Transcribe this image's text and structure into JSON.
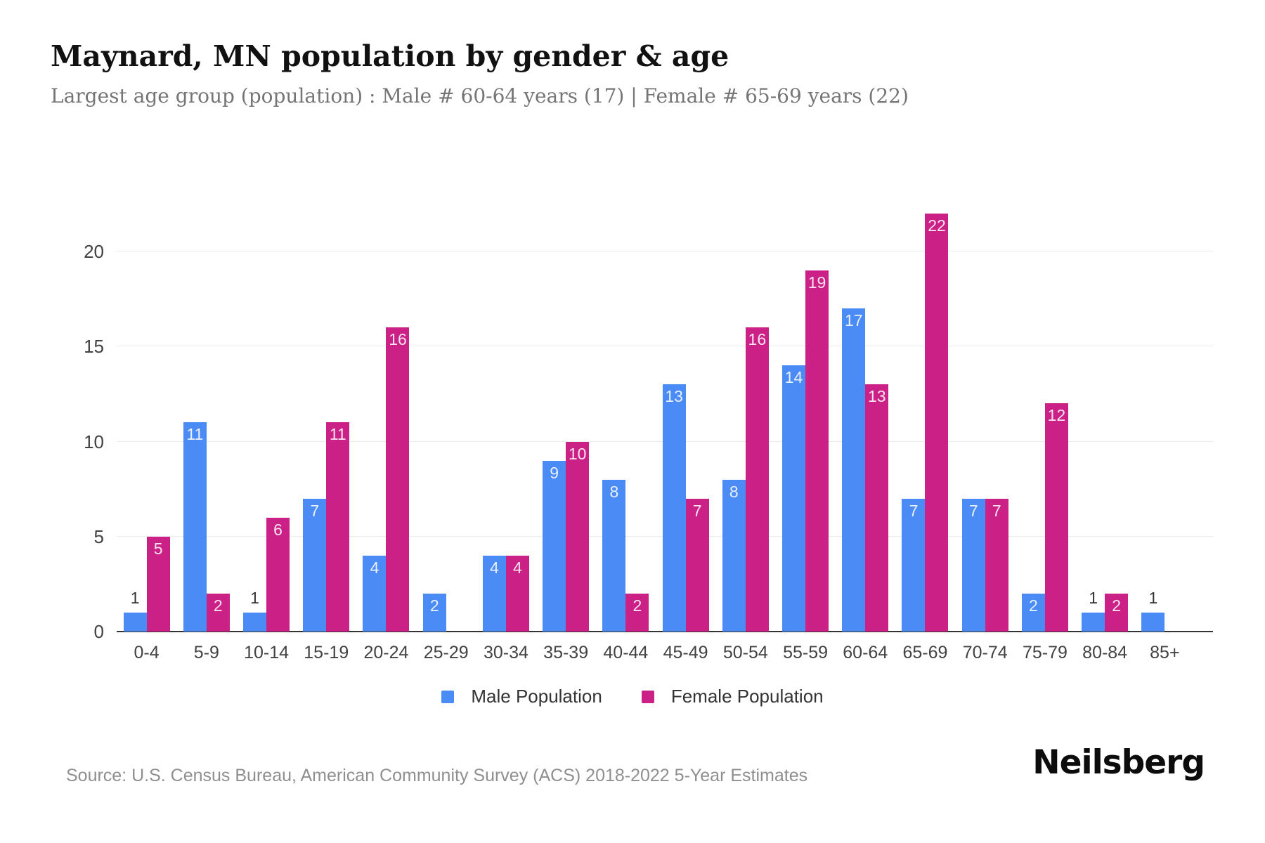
{
  "header": {
    "title": "Maynard, MN population by gender & age",
    "subtitle": "Largest age group (population) : Male # 60-64 years (17) | Female # 65-69 years (22)"
  },
  "chart_data": {
    "type": "bar",
    "categories": [
      "0-4",
      "5-9",
      "10-14",
      "15-19",
      "20-24",
      "25-29",
      "30-34",
      "35-39",
      "40-44",
      "45-49",
      "50-54",
      "55-59",
      "60-64",
      "65-69",
      "70-74",
      "75-79",
      "80-84",
      "85+"
    ],
    "series": [
      {
        "name": "Male Population",
        "color": "#4a8bf5",
        "values": [
          1,
          11,
          1,
          7,
          4,
          2,
          4,
          9,
          8,
          13,
          8,
          14,
          17,
          7,
          7,
          2,
          1,
          1
        ]
      },
      {
        "name": "Female Population",
        "color": "#cb2187",
        "values": [
          5,
          2,
          6,
          11,
          16,
          0,
          4,
          10,
          2,
          7,
          16,
          19,
          13,
          22,
          7,
          12,
          2,
          0
        ]
      }
    ],
    "title": "Maynard, MN population by gender & age",
    "xlabel": "",
    "ylabel": "",
    "ylim": [
      0,
      22
    ],
    "yticks": [
      0,
      5,
      10,
      15,
      20
    ],
    "grid": "horizontal",
    "legend_position": "bottom",
    "value_labels": "shown at top inside bar in white; value 1 shown above bar in dark; zero values hidden"
  },
  "legend": {
    "items": [
      {
        "label": "Male Population",
        "color": "#4a8bf5"
      },
      {
        "label": "Female Population",
        "color": "#cb2187"
      }
    ]
  },
  "footer": {
    "source": "Source: U.S. Census Bureau, American Community Survey (ACS) 2018-2022 5-Year Estimates",
    "logo": "Neilsberg"
  },
  "colors": {
    "male": "#4a8bf5",
    "female": "#cb2187",
    "gridline": "#ececec",
    "axis": "#333333",
    "subtitle": "#757575",
    "source": "#8f8f8f"
  }
}
